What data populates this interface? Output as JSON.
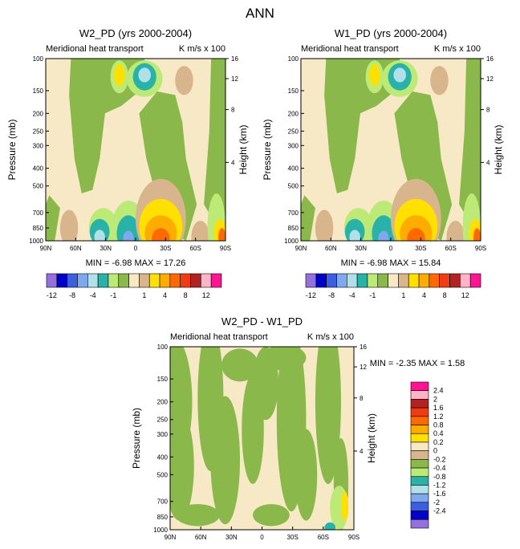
{
  "figure_title": "ANN",
  "colors": {
    "ink": "#000000",
    "panel_bg": "#f7e8c6",
    "green_zero": "#8ab84a",
    "light_green": "#bdea76",
    "teal": "#29b2a8",
    "pale_blue": "#b2e0ea",
    "mid_blue": "#7fa8ef",
    "blue": "#3c5fe2",
    "navy": "#0000c8",
    "purple": "#9370db",
    "tan": "#d8b58c",
    "yellow": "#ffe000",
    "gold": "#ffac00",
    "orange": "#ff6900",
    "red_orange": "#f03c14",
    "dark_red": "#b22222",
    "pink": "#ffb4c8",
    "magenta": "#ff1494"
  },
  "chart_data": [
    {
      "type": "heatmap",
      "id": "w2",
      "title": "W2_PD (yrs 2000-2004)",
      "subtitle_left": "Meridional heat transport",
      "subtitle_right": "K m/s x 100",
      "xlabel": "",
      "ylabel": "Pressure (mb)",
      "y2label": "Height (km)",
      "x_ticks": [
        "90N",
        "60N",
        "30N",
        "0",
        "30S",
        "60S",
        "90S"
      ],
      "y_ticks": [
        "100",
        "150",
        "200",
        "250",
        "300",
        "400",
        "500",
        "700",
        "850",
        "1000"
      ],
      "y2_ticks": [
        "16",
        "12",
        "8",
        "4"
      ],
      "min": -6.98,
      "max": 17.26,
      "stats_text": "MIN = -6.98 MAX = 17.26",
      "ylim": [
        1000,
        100
      ],
      "xlim": [
        90,
        -90
      ]
    },
    {
      "type": "heatmap",
      "id": "w1",
      "title": "W1_PD (yrs 2000-2004)",
      "subtitle_left": "Meridional heat transport",
      "subtitle_right": "K m/s x 100",
      "xlabel": "",
      "ylabel": "Pressure (mb)",
      "y2label": "Height (km)",
      "x_ticks": [
        "90N",
        "60N",
        "30N",
        "0",
        "30S",
        "60S",
        "90S"
      ],
      "y_ticks": [
        "100",
        "150",
        "200",
        "250",
        "300",
        "400",
        "500",
        "700",
        "850",
        "1000"
      ],
      "y2_ticks": [
        "16",
        "12",
        "8",
        "4"
      ],
      "min": -6.98,
      "max": 15.84,
      "stats_text": "MIN = -6.98 MAX = 15.84",
      "ylim": [
        1000,
        100
      ],
      "xlim": [
        90,
        -90
      ]
    },
    {
      "type": "heatmap",
      "id": "diff",
      "title": "W2_PD - W1_PD",
      "subtitle_left": "Meridional heat transport",
      "subtitle_right": "K m/s x 100",
      "xlabel": "",
      "ylabel": "Pressure (mb)",
      "y2label": "Height (km)",
      "x_ticks": [
        "90N",
        "60N",
        "30N",
        "0",
        "30S",
        "60S",
        "90S"
      ],
      "y_ticks": [
        "100",
        "150",
        "200",
        "250",
        "300",
        "400",
        "500",
        "700",
        "850",
        "1000"
      ],
      "y2_ticks": [
        "16",
        "12",
        "8",
        "4"
      ],
      "min": -2.35,
      "max": 1.58,
      "stats_text": "MIN = -2.35 MAX = 1.58",
      "ylim": [
        1000,
        100
      ],
      "xlim": [
        90,
        -90
      ]
    }
  ],
  "colorbar_top": {
    "colors": [
      "#9370db",
      "#0000c8",
      "#3c5fe2",
      "#7fa8ef",
      "#b2e0ea",
      "#29b2a8",
      "#bdea76",
      "#8ab84a",
      "#f7e8c6",
      "#d8b58c",
      "#ffe000",
      "#ffac00",
      "#ff6900",
      "#f03c14",
      "#b22222",
      "#ffb4c8",
      "#ff1494"
    ],
    "labels": [
      "-12",
      "-8",
      "-4",
      "-1",
      "1",
      "4",
      "8",
      "12"
    ]
  },
  "colorbar_diff": {
    "colors": [
      "#ff1494",
      "#ffb4c8",
      "#b22222",
      "#f03c14",
      "#ff6900",
      "#ffac00",
      "#ffe000",
      "#f7e8c6",
      "#d8b58c",
      "#8ab84a",
      "#bdea76",
      "#29b2a8",
      "#b2e0ea",
      "#7fa8ef",
      "#3c5fe2",
      "#0000c8",
      "#9370db"
    ],
    "labels": [
      "2.4",
      "2",
      "1.6",
      "1.2",
      "0.8",
      "0.4",
      "0.2",
      "0",
      "-0.2",
      "-0.4",
      "-0.8",
      "-1.2",
      "-1.6",
      "-2",
      "-2.4"
    ]
  }
}
